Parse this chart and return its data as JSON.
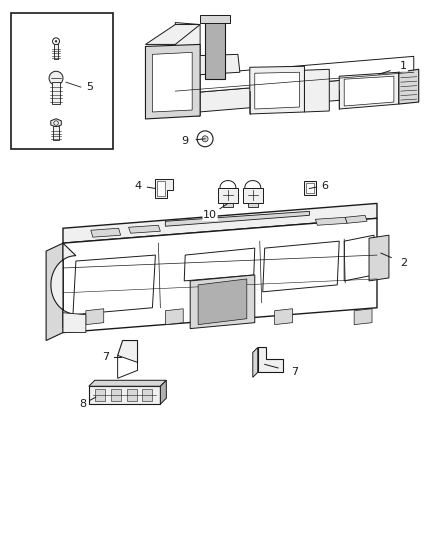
{
  "background_color": "#ffffff",
  "figure_width": 4.38,
  "figure_height": 5.33,
  "dpi": 100,
  "line_color": "#1a1a1a",
  "line_width": 0.8,
  "label_fontsize": 8,
  "label_color": "#1a1a1a",
  "fill_light": "#f0f0f0",
  "fill_mid": "#d8d8d8",
  "fill_dark": "#b0b0b0",
  "fill_white": "#ffffff"
}
